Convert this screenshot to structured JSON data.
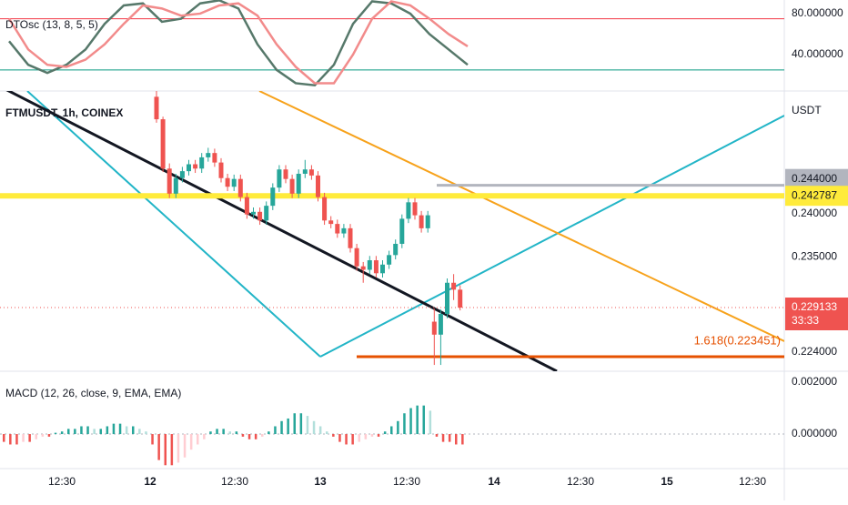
{
  "oscillator": {
    "label": "DTOsc (13, 8, 5, 5)",
    "ylim": [
      4.4,
      93.3
    ],
    "yticks": [
      {
        "value": 80,
        "label": "80.000000"
      },
      {
        "value": 40,
        "label": "40.000000"
      }
    ],
    "upper_level": 75,
    "lower_level": 25,
    "series": [
      {
        "color": "#56786a",
        "values": [
          53,
          30,
          22,
          30,
          45,
          70,
          88,
          90,
          72,
          75,
          90,
          93,
          85,
          50,
          25,
          12,
          10,
          30,
          70,
          92,
          90,
          80,
          60,
          45,
          30
        ]
      },
      {
        "color": "#f28b8b",
        "values": [
          75,
          45,
          30,
          28,
          35,
          50,
          70,
          88,
          85,
          78,
          80,
          88,
          90,
          78,
          50,
          28,
          12,
          12,
          40,
          75,
          92,
          88,
          75,
          60,
          48
        ]
      }
    ]
  },
  "price": {
    "symbol": "FTMUSDT, 1h, COINEX",
    "currency": "USDT",
    "ylim": [
      0.22177,
      0.25417
    ],
    "yticks": [
      {
        "value": 0.244,
        "label": "0.244000"
      },
      {
        "value": 0.24,
        "label": "0.240000"
      },
      {
        "value": 0.235,
        "label": "0.235000"
      },
      {
        "value": 0.224,
        "label": "0.224000"
      }
    ],
    "resistance": {
      "value": 0.242787,
      "label": "0.242787"
    },
    "last_price": {
      "value": 0.229133,
      "label": "0.229133"
    },
    "countdown": "33:33",
    "fib": {
      "value": 0.223451,
      "label": "1.618(0.223451)"
    },
    "candles": [
      [
        0.2535,
        0.2542,
        0.2505,
        0.2509
      ],
      [
        0.2509,
        0.2512,
        0.2448,
        0.2452
      ],
      [
        0.2452,
        0.2458,
        0.2418,
        0.2423
      ],
      [
        0.2423,
        0.2446,
        0.2418,
        0.2441
      ],
      [
        0.2441,
        0.2454,
        0.2436,
        0.2449
      ],
      [
        0.2449,
        0.2462,
        0.2444,
        0.2457
      ],
      [
        0.2457,
        0.2462,
        0.2447,
        0.2452
      ],
      [
        0.2452,
        0.247,
        0.2447,
        0.2465
      ],
      [
        0.2465,
        0.2476,
        0.246,
        0.247
      ],
      [
        0.247,
        0.2475,
        0.2454,
        0.2459
      ],
      [
        0.2459,
        0.2464,
        0.2436,
        0.2441
      ],
      [
        0.2441,
        0.2446,
        0.2426,
        0.2431
      ],
      [
        0.2431,
        0.2445,
        0.2426,
        0.244
      ],
      [
        0.244,
        0.2445,
        0.2414,
        0.2419
      ],
      [
        0.2419,
        0.2424,
        0.2394,
        0.2399
      ],
      [
        0.2399,
        0.2407,
        0.2394,
        0.2402
      ],
      [
        0.2402,
        0.2407,
        0.2387,
        0.2392
      ],
      [
        0.2392,
        0.2414,
        0.2387,
        0.2409
      ],
      [
        0.2409,
        0.2435,
        0.2404,
        0.243
      ],
      [
        0.243,
        0.2456,
        0.2425,
        0.2451
      ],
      [
        0.2451,
        0.2456,
        0.2435,
        0.244
      ],
      [
        0.244,
        0.2445,
        0.2418,
        0.2423
      ],
      [
        0.2423,
        0.2451,
        0.2418,
        0.2446
      ],
      [
        0.2446,
        0.2462,
        0.2441,
        0.2451
      ],
      [
        0.2451,
        0.2456,
        0.2439,
        0.2444
      ],
      [
        0.2444,
        0.2449,
        0.2414,
        0.2419
      ],
      [
        0.2419,
        0.2424,
        0.2387,
        0.2392
      ],
      [
        0.2392,
        0.2397,
        0.2383,
        0.2388
      ],
      [
        0.2388,
        0.2393,
        0.2372,
        0.2377
      ],
      [
        0.2377,
        0.2388,
        0.2372,
        0.2383
      ],
      [
        0.2383,
        0.2388,
        0.2355,
        0.236
      ],
      [
        0.236,
        0.2365,
        0.2334,
        0.2339
      ],
      [
        0.2339,
        0.2344,
        0.232,
        0.2335
      ],
      [
        0.2335,
        0.2351,
        0.233,
        0.2346
      ],
      [
        0.2346,
        0.2351,
        0.2326,
        0.2331
      ],
      [
        0.2331,
        0.2346,
        0.2326,
        0.2341
      ],
      [
        0.2341,
        0.2357,
        0.2336,
        0.2352
      ],
      [
        0.2352,
        0.237,
        0.2347,
        0.2365
      ],
      [
        0.2365,
        0.2399,
        0.236,
        0.2394
      ],
      [
        0.2394,
        0.2418,
        0.2389,
        0.2413
      ],
      [
        0.2413,
        0.2418,
        0.2393,
        0.2398
      ],
      [
        0.2398,
        0.2403,
        0.2378,
        0.2383
      ],
      [
        0.2383,
        0.2403,
        0.2378,
        0.2398
      ],
      [
        0.2275,
        0.229,
        0.2225,
        0.226
      ],
      [
        0.226,
        0.2289,
        0.2225,
        0.2284
      ],
      [
        0.2284,
        0.2325,
        0.2279,
        0.232
      ],
      [
        0.232,
        0.233,
        0.23,
        0.2312
      ],
      [
        0.2312,
        0.2317,
        0.2288,
        0.229133
      ]
    ]
  },
  "macd": {
    "label": "MACD (12, 26, close, 9, EMA, EMA)",
    "ylim": [
      -0.00133,
      0.00242
    ],
    "yticks": [
      {
        "value": 0.002,
        "label": "0.002000"
      },
      {
        "value": 0,
        "label": "0.000000"
      }
    ],
    "histogram": [
      -0.0003,
      -0.0004,
      -0.0004,
      -0.0003,
      -0.0003,
      -0.0002,
      -0.0001,
      -0.0001,
      5e-05,
      0.0001,
      0.0002,
      0.0002,
      0.0003,
      0.0003,
      0.0002,
      0.0002,
      0.0003,
      0.0004,
      0.0004,
      0.0003,
      0.0003,
      0.0002,
      0.0001,
      -0.0004,
      -0.001,
      -0.0012,
      -0.0012,
      -0.0011,
      -0.0009,
      -0.0006,
      -0.0004,
      -0.0002,
      0.0001,
      0.0002,
      0.0002,
      0.0001,
      0.0001,
      -0.0001,
      -0.0002,
      -0.0002,
      -0.0001,
      0.0001,
      0.0003,
      0.0005,
      0.0006,
      0.0008,
      0.0008,
      0.0007,
      0.0005,
      0.0003,
      0.0001,
      -0.0001,
      -0.0003,
      -0.0004,
      -0.0004,
      -0.0003,
      -0.0002,
      -0.0001,
      -0.0001,
      0.0001,
      0.0003,
      0.0005,
      0.0008,
      0.001,
      0.0011,
      0.0011,
      0.0009,
      -0.0001,
      -0.0003,
      -0.0003,
      -0.0004,
      -0.0004
    ]
  },
  "time_axis": [
    "12:30",
    "12",
    "12:30",
    "13",
    "12:30",
    "14",
    "12:30",
    "15",
    "12:30"
  ]
}
